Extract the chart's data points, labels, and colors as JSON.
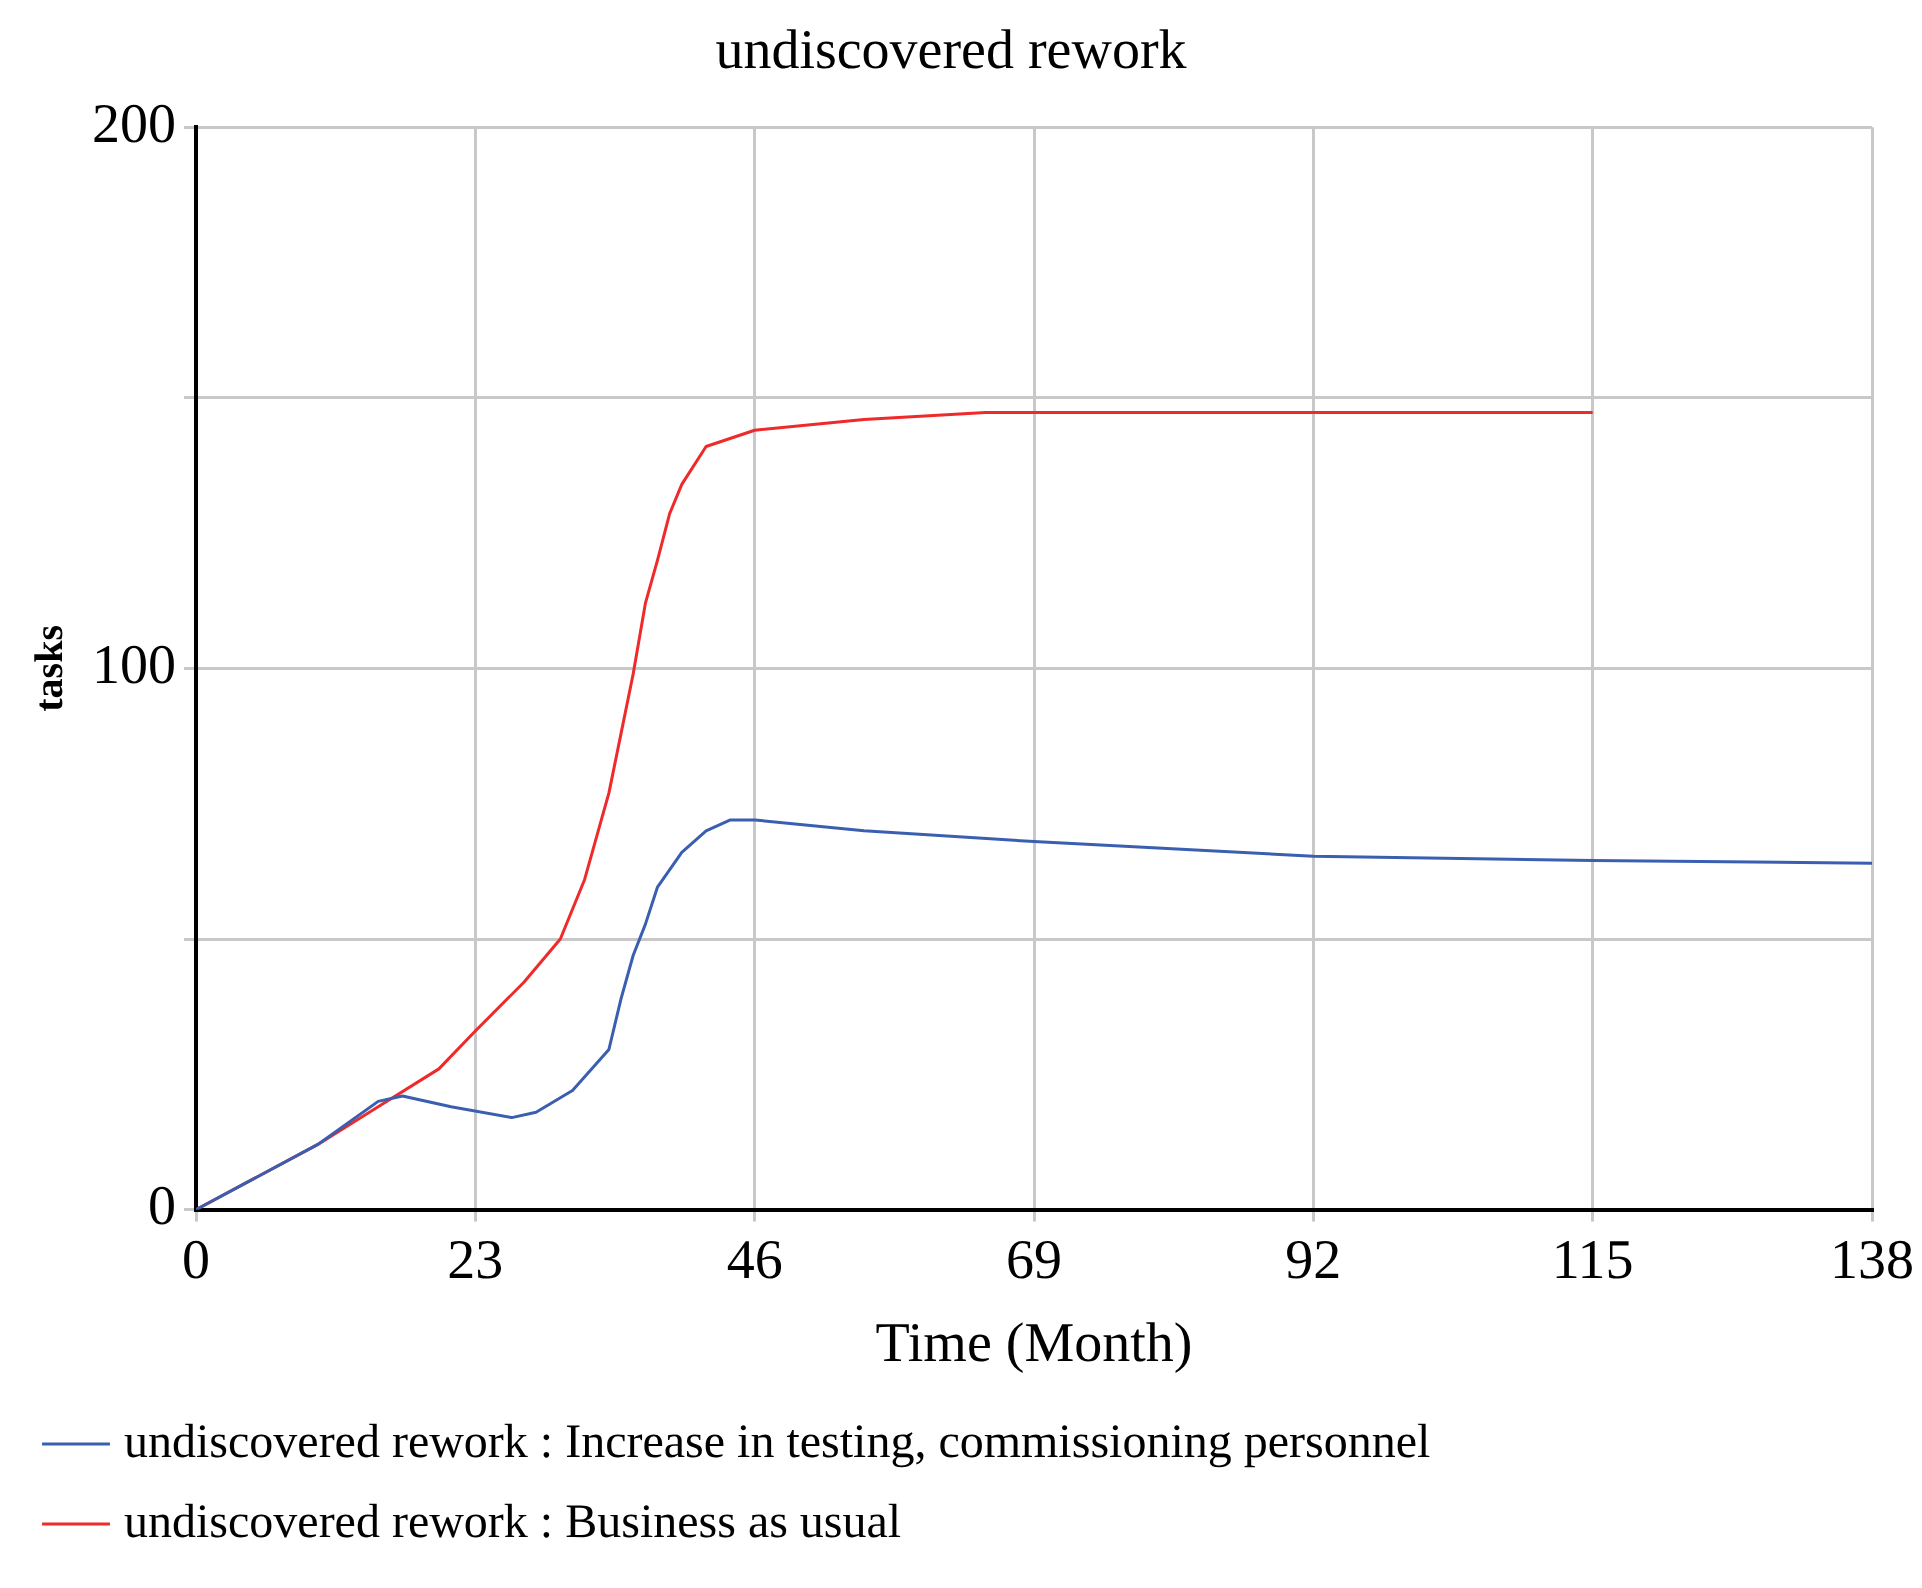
{
  "chart_data": {
    "type": "line",
    "title": "undiscovered rework",
    "xlabel": "Time (Month)",
    "ylabel": "tasks",
    "xlim": [
      0,
      138
    ],
    "xticks": [
      0,
      23,
      46,
      69,
      92,
      115,
      138
    ],
    "ylim": [
      0,
      200
    ],
    "yticks": [
      0,
      {
        "value": 50,
        "label": null
      },
      100,
      {
        "value": 150,
        "label": null
      },
      200
    ],
    "grid": true,
    "legend": "bottom",
    "marker": "none",
    "line_style": "solid",
    "series": [
      {
        "name": "undiscovered rework : Increase in testing, commissioning personnel",
        "color": "#3a5fb0",
        "x": [
          0,
          10,
          15,
          17,
          21,
          26,
          28,
          31,
          34,
          35,
          36,
          37,
          38,
          40,
          42,
          44,
          46,
          55,
          69,
          92,
          115,
          138
        ],
        "values": [
          0,
          12,
          20,
          21,
          19,
          17,
          18,
          22,
          29.6,
          39,
          47,
          52.7,
          59.6,
          66,
          70,
          72,
          72,
          70,
          68,
          65.3,
          64.5,
          64
        ]
      },
      {
        "name": "undiscovered rework : Business as usual",
        "color": "#ee2a2a",
        "x": [
          0,
          10,
          15,
          20,
          23,
          27,
          30,
          32,
          33,
          34,
          35,
          36,
          37,
          38,
          39,
          40,
          42,
          46,
          55,
          65,
          115
        ],
        "values": [
          0,
          12,
          19,
          26,
          33,
          42,
          50,
          61,
          69,
          77,
          88,
          99,
          112,
          120,
          128.6,
          134,
          141,
          144,
          146,
          147.3,
          147.3
        ]
      }
    ]
  }
}
